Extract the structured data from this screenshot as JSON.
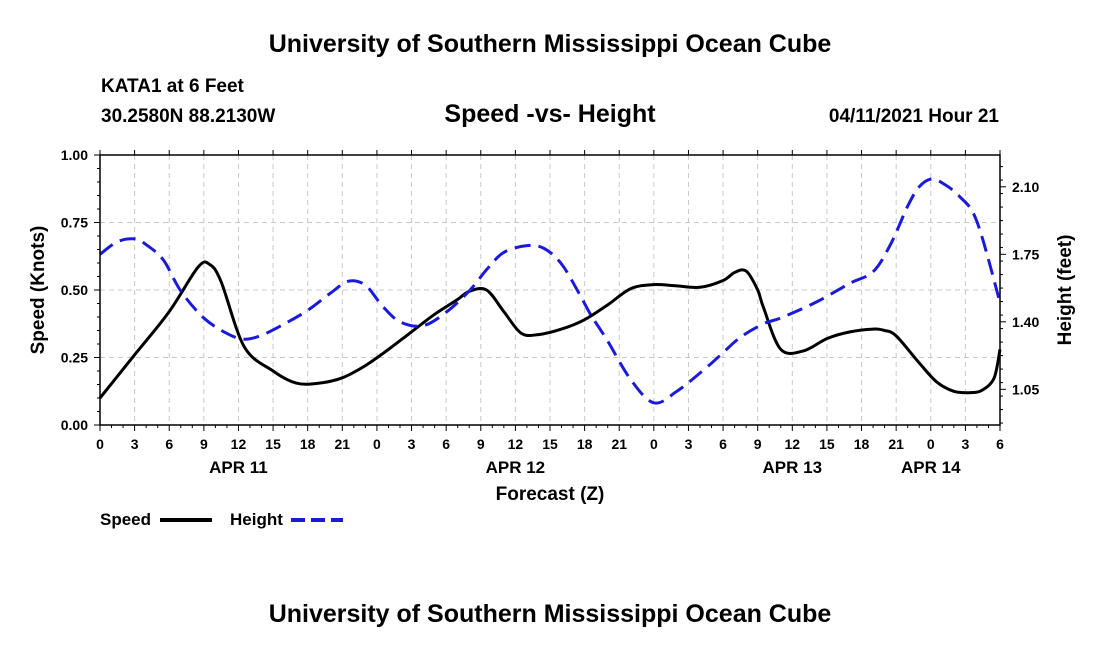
{
  "header": {
    "title": "University of Southern Mississippi Ocean Cube",
    "station": "KATA1 at 6 Feet",
    "coordinates": "30.2580N  88.2130W",
    "subtitle": "Speed -vs- Height",
    "datetime": "04/11/2021 Hour 21"
  },
  "footer": {
    "title": "University of Southern Mississippi Ocean Cube"
  },
  "chart_data": {
    "type": "line",
    "title": "Speed -vs- Height",
    "xlabel": "Forecast (Z)",
    "ylabel": "Speed (Knots)",
    "y2label": "Height (feet)",
    "x_range_hours": [
      0,
      78
    ],
    "x_tick_step_hours": 3,
    "x_tick_labels": [
      "0",
      "3",
      "6",
      "9",
      "12",
      "15",
      "18",
      "21",
      "0",
      "3",
      "6",
      "9",
      "12",
      "15",
      "18",
      "21",
      "0",
      "3",
      "6",
      "9",
      "12",
      "15",
      "18",
      "21",
      "0",
      "3",
      "6"
    ],
    "date_labels": [
      {
        "label": "APR 11",
        "hour": 12
      },
      {
        "label": "APR 12",
        "hour": 36
      },
      {
        "label": "APR 13",
        "hour": 60
      },
      {
        "label": "APR 14",
        "hour": 72
      }
    ],
    "ylim": [
      0,
      1
    ],
    "y_ticks": [
      0,
      0.25,
      0.5,
      0.75,
      1.0
    ],
    "y_tick_labels": [
      "0.00",
      "0.25",
      "0.50",
      "0.75",
      "1.00"
    ],
    "y2lim": [
      0.865,
      2.265
    ],
    "y2_ticks": [
      1.05,
      1.4,
      1.75,
      2.1
    ],
    "y2_tick_labels": [
      "1.05",
      "1.40",
      "1.75",
      "2.10"
    ],
    "grid": true,
    "legend_position": "bottom-left",
    "series": [
      {
        "name": "Speed",
        "axis": "left",
        "color": "#000000",
        "style": "solid",
        "x": [
          0,
          3,
          6,
          8.5,
          9.5,
          10.5,
          12.5,
          15,
          17,
          19,
          21,
          23,
          25,
          27,
          29,
          31,
          32,
          33.5,
          35,
          36.5,
          38,
          40,
          42,
          44,
          46,
          48,
          50,
          52,
          54,
          55,
          56,
          57,
          57.5,
          59,
          61,
          63,
          65,
          67,
          68,
          69,
          71,
          72.5,
          74,
          75.5,
          76.5,
          77.5,
          78
        ],
        "values": [
          0.1,
          0.26,
          0.42,
          0.585,
          0.595,
          0.53,
          0.29,
          0.2,
          0.155,
          0.155,
          0.175,
          0.22,
          0.28,
          0.345,
          0.41,
          0.465,
          0.495,
          0.5,
          0.42,
          0.34,
          0.335,
          0.355,
          0.39,
          0.445,
          0.505,
          0.52,
          0.515,
          0.51,
          0.535,
          0.565,
          0.57,
          0.5,
          0.435,
          0.28,
          0.275,
          0.32,
          0.345,
          0.355,
          0.35,
          0.33,
          0.23,
          0.16,
          0.125,
          0.12,
          0.13,
          0.175,
          0.28
        ]
      },
      {
        "name": "Height",
        "axis": "right",
        "color": "#1a1adb",
        "style": "dashed",
        "x": [
          0,
          1.5,
          3,
          4,
          5.5,
          7,
          9,
          11,
          12.5,
          14,
          16,
          18,
          20,
          21.5,
          23,
          24.5,
          26,
          28,
          30,
          32,
          33.5,
          35,
          37,
          38.5,
          40,
          41.5,
          42.5,
          44,
          46,
          48,
          50,
          52.5,
          54,
          55.5,
          57.5,
          59,
          62,
          65,
          67,
          68.5,
          70,
          71,
          72,
          73,
          74.5,
          76,
          78
        ],
        "values": [
          1.75,
          1.815,
          1.83,
          1.8,
          1.72,
          1.56,
          1.42,
          1.34,
          1.31,
          1.33,
          1.39,
          1.46,
          1.55,
          1.61,
          1.59,
          1.48,
          1.4,
          1.38,
          1.45,
          1.56,
          1.67,
          1.76,
          1.795,
          1.78,
          1.7,
          1.55,
          1.44,
          1.3,
          1.1,
          0.98,
          1.04,
          1.16,
          1.24,
          1.32,
          1.39,
          1.42,
          1.5,
          1.6,
          1.66,
          1.8,
          2.0,
          2.1,
          2.14,
          2.12,
          2.05,
          1.92,
          1.5
        ]
      }
    ]
  }
}
